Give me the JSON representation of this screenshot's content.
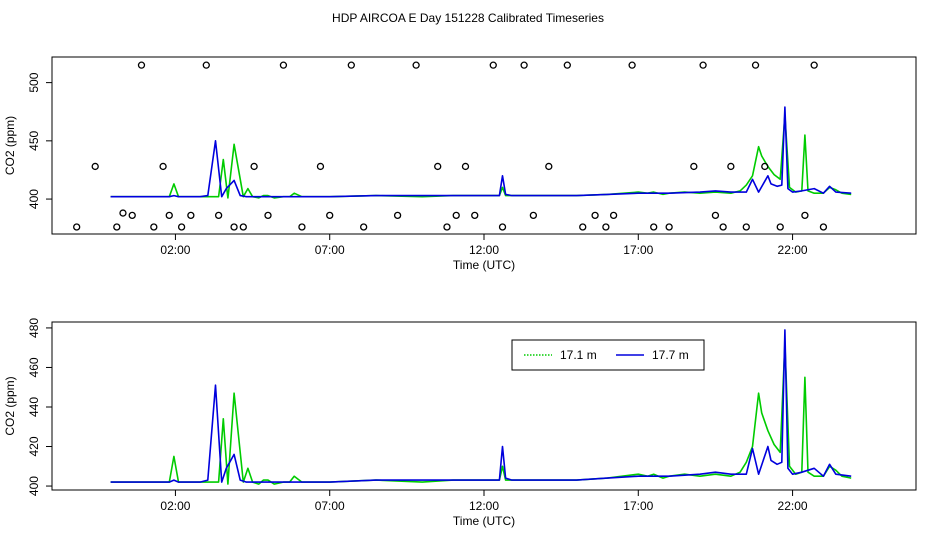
{
  "title": "HDP AIRCOA E  Day 151228  Calibrated Timeseries",
  "chart_data": [
    {
      "type": "line",
      "xlabel": "Time (UTC)",
      "ylabel": "CO2 (ppm)",
      "x_unit": "hours UTC",
      "xlim": [
        -2.0,
        26.0
      ],
      "ylim": [
        370,
        522
      ],
      "x_ticks": [
        2,
        7,
        12,
        17,
        22
      ],
      "x_tick_labels": [
        "02:00",
        "07:00",
        "12:00",
        "17:00",
        "22:00"
      ],
      "y_ticks": [
        400,
        450,
        500
      ],
      "y_tick_labels": [
        "400",
        "450",
        "500"
      ],
      "series": [
        {
          "color": "#00cc00",
          "x": [
            -0.1,
            1.5,
            1.8,
            1.95,
            2.1,
            2.5,
            3.0,
            3.4,
            3.55,
            3.7,
            3.9,
            4.2,
            4.35,
            4.5,
            4.7,
            4.85,
            5.0,
            5.2,
            5.5,
            5.7,
            5.85,
            6.1,
            6.5,
            7.0,
            8.5,
            10.0,
            11.0,
            12.0,
            12.5,
            12.6,
            12.7,
            13.0,
            14.0,
            15.0,
            16.0,
            17.0,
            17.3,
            17.5,
            17.8,
            18.0,
            18.5,
            19.0,
            19.5,
            20.0,
            20.3,
            20.5,
            20.7,
            20.9,
            21.0,
            21.2,
            21.4,
            21.6,
            21.75,
            21.9,
            22.1,
            22.3,
            22.4,
            22.5,
            22.7,
            23.0,
            23.2,
            23.4,
            23.6,
            23.9
          ],
          "y": [
            402,
            402,
            402,
            413,
            402,
            402,
            402,
            402,
            434,
            401,
            447,
            402,
            409,
            402,
            401,
            403,
            403,
            401,
            402,
            402,
            405,
            402,
            402,
            402,
            403,
            402,
            403,
            403,
            403,
            410,
            403,
            403,
            403,
            403,
            404,
            406,
            405,
            406,
            404,
            405,
            406,
            405,
            406,
            405,
            407,
            412,
            420,
            445,
            437,
            428,
            421,
            417,
            472,
            410,
            406,
            407,
            455,
            407,
            405,
            405,
            410,
            408,
            405,
            404
          ]
        },
        {
          "color": "#0000dd",
          "x": [
            -0.1,
            1.5,
            1.8,
            1.95,
            2.1,
            2.8,
            3.05,
            3.3,
            3.5,
            3.65,
            3.9,
            4.1,
            4.3,
            5.0,
            6.0,
            7.0,
            8.5,
            10.0,
            11.0,
            12.0,
            12.5,
            12.6,
            12.7,
            12.9,
            13.0,
            14.0,
            15.0,
            16.0,
            17.0,
            18.0,
            19.0,
            19.5,
            20.0,
            20.5,
            20.7,
            20.9,
            21.2,
            21.3,
            21.5,
            21.65,
            21.75,
            21.85,
            22.0,
            22.3,
            22.7,
            23.0,
            23.2,
            23.4,
            23.9
          ],
          "y": [
            402,
            402,
            402,
            403,
            402,
            402,
            403,
            450,
            402,
            409,
            416,
            403,
            402,
            402,
            402,
            402,
            403,
            403,
            403,
            403,
            403,
            420,
            404,
            403,
            403,
            403,
            403,
            404,
            405,
            405,
            406,
            407,
            406,
            406,
            417,
            406,
            420,
            413,
            411,
            412,
            479,
            409,
            406,
            407,
            409,
            405,
            411,
            406,
            405
          ]
        }
      ],
      "markers": {
        "shape": "open-circle",
        "x": [
          -1.2,
          -0.6,
          0.1,
          0.3,
          0.6,
          0.9,
          1.3,
          1.6,
          1.8,
          2.2,
          2.5,
          3.0,
          3.4,
          3.9,
          4.2,
          4.55,
          5.0,
          5.5,
          6.1,
          6.7,
          7.0,
          7.7,
          8.1,
          9.2,
          9.8,
          10.5,
          10.8,
          11.1,
          11.4,
          11.7,
          12.3,
          12.6,
          13.3,
          13.6,
          14.1,
          14.7,
          15.2,
          15.6,
          15.95,
          16.2,
          16.8,
          17.5,
          18.0,
          18.8,
          19.1,
          19.5,
          19.75,
          20.0,
          20.5,
          20.8,
          21.1,
          21.6,
          22.4,
          22.7,
          23.0
        ],
        "y": [
          376,
          428,
          376,
          388,
          386,
          515,
          376,
          428,
          386,
          376,
          386,
          515,
          386,
          376,
          376,
          428,
          386,
          515,
          376,
          428,
          386,
          515,
          376,
          386,
          515,
          428,
          376,
          386,
          428,
          386,
          515,
          376,
          515,
          386,
          428,
          515,
          376,
          386,
          376,
          386,
          515,
          376,
          376,
          428,
          515,
          386,
          376,
          428,
          376,
          515,
          428,
          376,
          386,
          515,
          376
        ]
      }
    },
    {
      "type": "line",
      "xlabel": "Time (UTC)",
      "ylabel": "CO2 (ppm)",
      "x_unit": "hours UTC",
      "xlim": [
        -2.0,
        26.0
      ],
      "ylim": [
        398,
        483
      ],
      "x_ticks": [
        2,
        7,
        12,
        17,
        22
      ],
      "x_tick_labels": [
        "02:00",
        "07:00",
        "12:00",
        "17:00",
        "22:00"
      ],
      "y_ticks": [
        400,
        420,
        440,
        460,
        480
      ],
      "y_tick_labels": [
        "400",
        "420",
        "440",
        "460",
        "480"
      ],
      "legend": {
        "position": "top-right",
        "entries": [
          {
            "label": "17.1 m",
            "color": "#00cc00",
            "style": "dotted"
          },
          {
            "label": "17.7 m",
            "color": "#0000dd",
            "style": "solid"
          }
        ]
      },
      "series": [
        {
          "name": "17.1 m",
          "color": "#00cc00",
          "x": [
            -0.1,
            1.5,
            1.8,
            1.95,
            2.1,
            2.5,
            3.0,
            3.4,
            3.55,
            3.7,
            3.9,
            4.2,
            4.35,
            4.5,
            4.7,
            4.85,
            5.0,
            5.2,
            5.5,
            5.7,
            5.85,
            6.1,
            6.5,
            7.0,
            8.5,
            10.0,
            11.0,
            12.0,
            12.5,
            12.6,
            12.7,
            13.0,
            14.0,
            15.0,
            16.0,
            17.0,
            17.3,
            17.5,
            17.8,
            18.0,
            18.5,
            19.0,
            19.5,
            20.0,
            20.3,
            20.5,
            20.7,
            20.9,
            21.0,
            21.2,
            21.4,
            21.6,
            21.75,
            21.9,
            22.1,
            22.3,
            22.4,
            22.5,
            22.7,
            23.0,
            23.2,
            23.4,
            23.6,
            23.9
          ],
          "y": [
            402,
            402,
            402,
            415,
            402,
            402,
            402,
            402,
            434,
            401,
            447,
            402,
            409,
            402,
            401,
            403,
            403,
            401,
            402,
            402,
            405,
            402,
            402,
            402,
            403,
            402,
            403,
            403,
            403,
            410,
            403,
            403,
            403,
            403,
            404,
            406,
            405,
            406,
            404,
            405,
            406,
            405,
            406,
            405,
            407,
            412,
            420,
            447,
            437,
            428,
            421,
            417,
            472,
            410,
            406,
            407,
            455,
            407,
            405,
            405,
            410,
            408,
            405,
            404
          ]
        },
        {
          "name": "17.7 m",
          "color": "#0000dd",
          "x": [
            -0.1,
            1.5,
            1.8,
            1.95,
            2.1,
            2.8,
            3.05,
            3.3,
            3.5,
            3.65,
            3.9,
            4.1,
            4.3,
            5.0,
            6.0,
            7.0,
            8.5,
            10.0,
            11.0,
            12.0,
            12.5,
            12.6,
            12.7,
            12.9,
            13.0,
            14.0,
            15.0,
            16.0,
            17.0,
            18.0,
            19.0,
            19.5,
            20.0,
            20.5,
            20.7,
            20.9,
            21.2,
            21.3,
            21.5,
            21.65,
            21.75,
            21.85,
            22.0,
            22.3,
            22.7,
            23.0,
            23.2,
            23.4,
            23.9
          ],
          "y": [
            402,
            402,
            402,
            403,
            402,
            402,
            403,
            451,
            402,
            409,
            416,
            403,
            402,
            402,
            402,
            402,
            403,
            403,
            403,
            403,
            403,
            420,
            404,
            403,
            403,
            403,
            403,
            404,
            405,
            405,
            406,
            407,
            406,
            406,
            419,
            406,
            420,
            413,
            411,
            412,
            479,
            409,
            406,
            407,
            409,
            405,
            411,
            406,
            405
          ]
        }
      ]
    }
  ]
}
